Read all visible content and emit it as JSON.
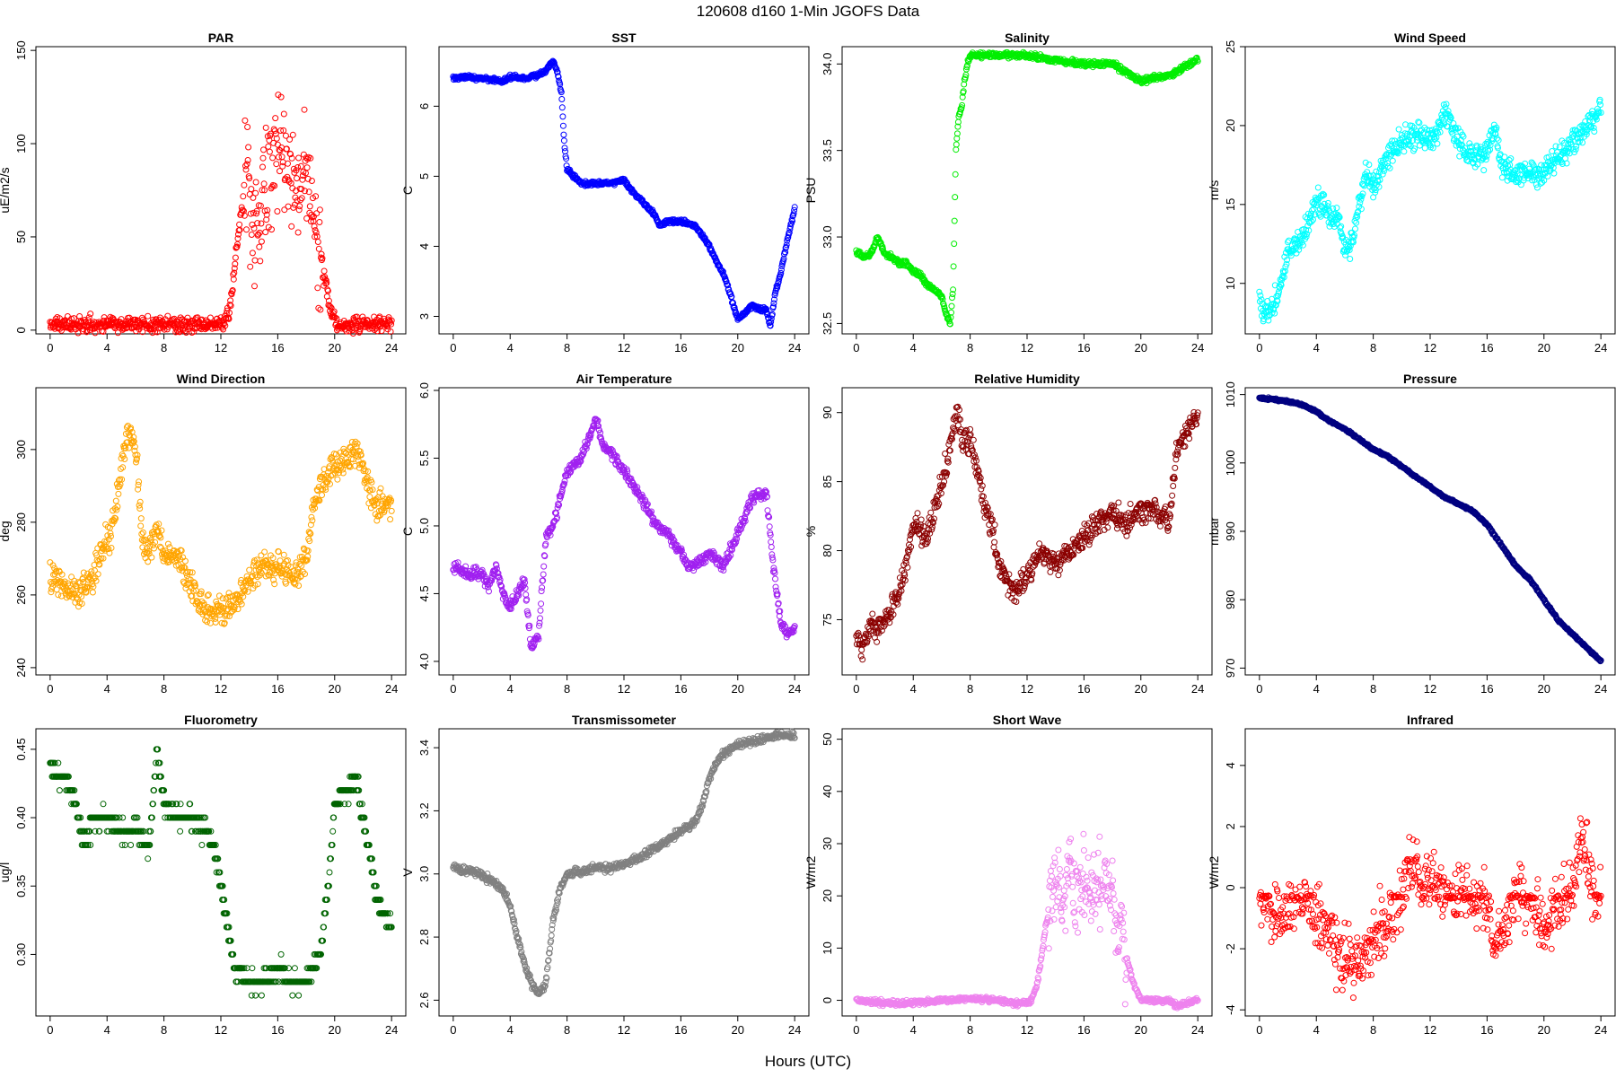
{
  "figure": {
    "title": "120608   d160   1-Min  JGOFS Data",
    "xlabel": "Hours (UTC)"
  },
  "chart_data": [
    {
      "type": "scatter",
      "title": "PAR",
      "ylabel": "uE/m2/s",
      "color": "#ff0000",
      "xlim": [
        -1,
        25
      ],
      "ylim": [
        -2,
        152
      ],
      "xticks": [
        0,
        4,
        8,
        12,
        16,
        20,
        24
      ],
      "yticks": [
        0,
        50,
        100,
        150
      ],
      "ytick_labels": [
        "0",
        "50",
        "100",
        "150"
      ],
      "noise": 4,
      "x": [
        0,
        2,
        4,
        6,
        8,
        10,
        11,
        12,
        12.3,
        12.7,
        13,
        13.3,
        13.6,
        13.9,
        14.2,
        14.5,
        14.8,
        15.2,
        15.6,
        16,
        16.4,
        16.8,
        17.2,
        17.6,
        18,
        18.3,
        18.6,
        18.9,
        19.2,
        19.5,
        19.8,
        20.2,
        21,
        22,
        24
      ],
      "y": [
        3,
        3,
        3,
        3,
        3,
        3,
        3,
        3,
        5,
        15,
        35,
        55,
        75,
        90,
        60,
        50,
        70,
        80,
        85,
        95,
        90,
        80,
        85,
        75,
        85,
        65,
        50,
        50,
        30,
        20,
        8,
        3,
        3,
        3,
        3
      ],
      "spread": [
        [
          13.5,
          19
        ],
        30
      ]
    },
    {
      "type": "scatter",
      "title": "SST",
      "ylabel": "C",
      "color": "#0000ff",
      "xlim": [
        -1,
        25
      ],
      "ylim": [
        2.75,
        6.85
      ],
      "xticks": [
        0,
        4,
        8,
        12,
        16,
        20,
        24
      ],
      "yticks": [
        3,
        4,
        5,
        6
      ],
      "ytick_labels": [
        "3",
        "4",
        "5",
        "6"
      ],
      "noise": 0.03,
      "x": [
        0,
        1,
        2,
        3,
        3.5,
        4,
        5,
        6,
        6.5,
        7,
        7.3,
        7.6,
        7.8,
        8,
        9,
        10,
        11,
        12,
        12.5,
        13,
        14,
        14.5,
        15,
        16,
        17,
        18,
        18.5,
        19,
        19.5,
        20,
        20.5,
        21,
        21.5,
        22,
        22.3,
        22.6,
        23,
        23.5,
        24
      ],
      "y": [
        6.4,
        6.42,
        6.4,
        6.38,
        6.35,
        6.42,
        6.4,
        6.45,
        6.5,
        6.65,
        6.5,
        6.2,
        5.5,
        5.1,
        4.9,
        4.9,
        4.9,
        4.95,
        4.8,
        4.7,
        4.5,
        4.3,
        4.35,
        4.35,
        4.3,
        4.0,
        3.8,
        3.6,
        3.3,
        2.95,
        3.05,
        3.15,
        3.1,
        3.1,
        2.85,
        3.3,
        3.6,
        4.1,
        4.55
      ]
    },
    {
      "type": "scatter",
      "title": "Salinity",
      "ylabel": "PSU",
      "color": "#00ee00",
      "xlim": [
        -1,
        25
      ],
      "ylim": [
        32.44,
        34.1
      ],
      "xticks": [
        0,
        4,
        8,
        12,
        16,
        20,
        24
      ],
      "yticks": [
        32.5,
        33.0,
        33.5,
        34.0
      ],
      "ytick_labels": [
        "32.5",
        "33.0",
        "33.5",
        "34.0"
      ],
      "noise": 0.015,
      "x": [
        0,
        0.5,
        1,
        1.5,
        2,
        2.5,
        3,
        3.5,
        4,
        4.5,
        5,
        5.5,
        6,
        6.3,
        6.6,
        6.8,
        7,
        7.2,
        7.4,
        7.6,
        7.8,
        8,
        10,
        12,
        14,
        16,
        18,
        19,
        20,
        21,
        22,
        23,
        24
      ],
      "y": [
        32.92,
        32.88,
        32.9,
        33.0,
        32.9,
        32.88,
        32.85,
        32.85,
        32.8,
        32.78,
        32.72,
        32.7,
        32.65,
        32.55,
        32.5,
        32.7,
        33.5,
        33.7,
        33.75,
        33.9,
        34.0,
        34.05,
        34.05,
        34.05,
        34.02,
        34.0,
        34.0,
        33.95,
        33.9,
        33.92,
        33.93,
        33.98,
        34.03
      ]
    },
    {
      "type": "scatter",
      "title": "Wind Speed",
      "ylabel": "m/s",
      "color": "#00ffff",
      "xlim": [
        -1,
        25
      ],
      "ylim": [
        6.8,
        25
      ],
      "xticks": [
        0,
        4,
        8,
        12,
        16,
        20,
        24
      ],
      "yticks": [
        10,
        15,
        20,
        25
      ],
      "ytick_labels": [
        "10",
        "15",
        "20",
        "25"
      ],
      "noise": 0.8,
      "x": [
        0,
        0.5,
        1,
        1.5,
        2,
        2.5,
        3,
        3.5,
        4,
        4.5,
        5,
        5.5,
        6,
        6.5,
        7,
        7.5,
        8,
        8.5,
        9,
        10,
        11,
        12,
        12.5,
        13,
        14,
        15,
        16,
        16.5,
        17,
        18,
        19,
        20,
        21,
        22,
        23,
        24
      ],
      "y": [
        9,
        8,
        8.5,
        10,
        12,
        12.5,
        13,
        14,
        15,
        15,
        14,
        14.5,
        12,
        12.5,
        15,
        17,
        16,
        17,
        18,
        19,
        19.5,
        19,
        19.5,
        21,
        19,
        18,
        18,
        20,
        17.5,
        17,
        17,
        17,
        18,
        19,
        20,
        21
      ]
    },
    {
      "type": "scatter",
      "title": "Wind Direction",
      "ylabel": "deg",
      "color": "#ffa500",
      "xlim": [
        -1,
        25
      ],
      "ylim": [
        238,
        317
      ],
      "xticks": [
        0,
        4,
        8,
        12,
        16,
        20,
        24
      ],
      "yticks": [
        240,
        260,
        280,
        300
      ],
      "ytick_labels": [
        "240",
        "260",
        "280",
        "300"
      ],
      "noise": 4,
      "x": [
        0,
        1,
        2,
        3,
        4,
        4.5,
        5,
        5.5,
        6,
        6.5,
        7,
        7.5,
        8,
        9,
        10,
        11,
        12,
        13,
        14,
        15,
        16,
        17,
        18,
        18.5,
        19,
        20,
        21,
        21.5,
        22,
        22.5,
        23,
        24
      ],
      "y": [
        265,
        262,
        260,
        265,
        275,
        280,
        295,
        305,
        300,
        275,
        272,
        278,
        272,
        270,
        262,
        255,
        255,
        258,
        265,
        268,
        268,
        265,
        270,
        285,
        290,
        295,
        298,
        300,
        295,
        288,
        285,
        285
      ]
    },
    {
      "type": "scatter",
      "title": "Air Temperature",
      "ylabel": "C",
      "color": "#a020f0",
      "xlim": [
        -1,
        25
      ],
      "ylim": [
        3.9,
        6.02
      ],
      "xticks": [
        0,
        4,
        8,
        12,
        16,
        20,
        24
      ],
      "yticks": [
        4.0,
        4.5,
        5.0,
        5.5,
        6.0
      ],
      "ytick_labels": [
        "4.0",
        "4.5",
        "5.0",
        "5.5",
        "6.0"
      ],
      "noise": 0.04,
      "x": [
        0,
        1,
        2,
        2.5,
        3,
        3.5,
        4,
        4.5,
        5,
        5.5,
        6,
        6.5,
        7,
        7.5,
        8,
        9,
        10,
        10.5,
        11,
        12,
        13,
        14,
        15,
        16,
        16.5,
        17,
        18,
        19,
        20,
        21,
        22,
        22.5,
        23,
        23.5,
        24
      ],
      "y": [
        4.7,
        4.65,
        4.65,
        4.55,
        4.7,
        4.5,
        4.4,
        4.5,
        4.6,
        4.1,
        4.2,
        4.9,
        5.0,
        5.2,
        5.4,
        5.5,
        5.8,
        5.6,
        5.55,
        5.4,
        5.25,
        5.05,
        4.95,
        4.8,
        4.7,
        4.7,
        4.8,
        4.7,
        4.95,
        5.2,
        5.25,
        4.7,
        4.3,
        4.2,
        4.25
      ]
    },
    {
      "type": "scatter",
      "title": "Relative Humidity",
      "ylabel": "%",
      "color": "#8b0000",
      "xlim": [
        -1,
        25
      ],
      "ylim": [
        71,
        91.8
      ],
      "xticks": [
        0,
        4,
        8,
        12,
        16,
        20,
        24
      ],
      "yticks": [
        75,
        80,
        85,
        90
      ],
      "ytick_labels": [
        "75",
        "80",
        "85",
        "90"
      ],
      "noise": 0.9,
      "x": [
        0,
        0.5,
        1,
        1.5,
        2,
        2.5,
        3,
        3.5,
        4,
        5,
        5.5,
        6,
        6.5,
        7,
        7.5,
        8,
        8.5,
        9,
        9.5,
        10,
        11,
        12,
        13,
        14,
        15,
        16,
        17,
        18,
        19,
        20,
        21,
        22,
        22.5,
        23,
        24
      ],
      "y": [
        74,
        73,
        75,
        74,
        75,
        76,
        77,
        79,
        82,
        81,
        83,
        85,
        87,
        90,
        88,
        88,
        86,
        83,
        82,
        79,
        77,
        78,
        80,
        79,
        80,
        81,
        82,
        83,
        82,
        83,
        83,
        82,
        87,
        88,
        90
      ]
    },
    {
      "type": "scatter",
      "title": "Pressure",
      "ylabel": "mbar",
      "color": "#000080",
      "xlim": [
        -1,
        25
      ],
      "ylim": [
        969,
        1011
      ],
      "xticks": [
        0,
        4,
        8,
        12,
        16,
        20,
        24
      ],
      "yticks": [
        970,
        980,
        990,
        1000,
        1010
      ],
      "ytick_labels": [
        "970",
        "980",
        "990",
        "1000",
        "1010"
      ],
      "noise": 0.15,
      "x": [
        0,
        1,
        2,
        3,
        4,
        5,
        6,
        7,
        8,
        9,
        10,
        11,
        12,
        13,
        14,
        15,
        16,
        17,
        18,
        19,
        20,
        21,
        22,
        23,
        24
      ],
      "y": [
        1009.5,
        1009.3,
        1009,
        1008.5,
        1007.5,
        1006,
        1005,
        1003.5,
        1002,
        1001,
        999.5,
        998,
        996.5,
        995,
        994,
        993,
        991,
        988,
        985,
        983,
        980,
        977,
        975,
        973,
        971
      ]
    },
    {
      "type": "scatter",
      "title": "Fluorometry",
      "ylabel": "ug/l",
      "color": "#006400",
      "xlim": [
        -1,
        25
      ],
      "ylim": [
        0.255,
        0.465
      ],
      "xticks": [
        0,
        4,
        8,
        12,
        16,
        20,
        24
      ],
      "yticks": [
        0.3,
        0.35,
        0.4,
        0.45
      ],
      "ytick_labels": [
        "0.30",
        "0.35",
        "0.40",
        "0.45"
      ],
      "noise": 0.007,
      "quant": 0.01,
      "x": [
        0,
        0.5,
        1,
        1.5,
        2,
        2.5,
        3,
        4,
        5,
        6,
        7,
        7.5,
        8,
        9,
        10,
        11,
        11.5,
        12,
        12.5,
        13,
        14,
        15,
        16,
        17,
        18,
        18.5,
        19,
        19.5,
        20,
        21,
        21.5,
        22,
        23,
        24
      ],
      "y": [
        0.44,
        0.43,
        0.43,
        0.42,
        0.4,
        0.38,
        0.4,
        0.4,
        0.39,
        0.39,
        0.38,
        0.45,
        0.41,
        0.4,
        0.4,
        0.39,
        0.38,
        0.35,
        0.32,
        0.29,
        0.28,
        0.28,
        0.29,
        0.28,
        0.28,
        0.29,
        0.3,
        0.35,
        0.41,
        0.42,
        0.43,
        0.4,
        0.34,
        0.32
      ]
    },
    {
      "type": "scatter",
      "title": "Transmissometer",
      "ylabel": "V",
      "color": "#808080",
      "xlim": [
        -1,
        25
      ],
      "ylim": [
        2.55,
        3.46
      ],
      "xticks": [
        0,
        4,
        8,
        12,
        16,
        20,
        24
      ],
      "yticks": [
        2.6,
        2.8,
        3.0,
        3.2,
        3.4
      ],
      "ytick_labels": [
        "2.6",
        "2.8",
        "3.0",
        "3.2",
        "3.4"
      ],
      "noise": 0.012,
      "x": [
        0,
        1,
        2,
        3,
        3.5,
        4,
        4.5,
        5,
        5.5,
        6,
        6.5,
        7,
        7.5,
        8,
        9,
        10,
        11,
        12,
        13,
        14,
        15,
        16,
        17,
        17.5,
        18,
        18.5,
        19,
        20,
        21,
        22,
        23,
        24
      ],
      "y": [
        3.02,
        3.01,
        3.0,
        2.97,
        2.95,
        2.9,
        2.8,
        2.72,
        2.65,
        2.62,
        2.65,
        2.85,
        2.95,
        3.0,
        3.01,
        3.02,
        3.02,
        3.03,
        3.05,
        3.08,
        3.1,
        3.14,
        3.16,
        3.22,
        3.3,
        3.35,
        3.38,
        3.41,
        3.42,
        3.43,
        3.44,
        3.44
      ]
    },
    {
      "type": "scatter",
      "title": "Short Wave",
      "ylabel": "W/m2",
      "color": "#ee82ee",
      "xlim": [
        -1,
        25
      ],
      "ylim": [
        -3,
        52
      ],
      "xticks": [
        0,
        4,
        8,
        12,
        16,
        20,
        24
      ],
      "yticks": [
        0,
        10,
        20,
        30,
        40,
        50
      ],
      "ytick_labels": [
        "0",
        "10",
        "20",
        "30",
        "40",
        "50"
      ],
      "noise": 0.5,
      "x": [
        0,
        2,
        4,
        6,
        8,
        10,
        11,
        12,
        12.3,
        12.7,
        13,
        13.3,
        13.6,
        14,
        14.5,
        15,
        15.5,
        16,
        16.5,
        17,
        17.5,
        18,
        18.5,
        19,
        19.5,
        20,
        22,
        22.5,
        24
      ],
      "y": [
        0,
        -0.5,
        -0.5,
        0,
        0.3,
        0,
        -0.5,
        -0.5,
        0,
        3,
        8,
        14,
        18,
        22,
        20,
        28,
        22,
        25,
        20,
        22,
        24,
        20,
        14,
        8,
        3,
        0,
        0,
        -1,
        0
      ],
      "spread": [
        [
          13.5,
          19
        ],
        8
      ]
    },
    {
      "type": "scatter",
      "title": "Infrared",
      "ylabel": "W/m2",
      "color": "#ff0000",
      "xlim": [
        -1,
        25
      ],
      "ylim": [
        -4.2,
        5.2
      ],
      "xticks": [
        0,
        4,
        8,
        12,
        16,
        20,
        24
      ],
      "yticks": [
        -4,
        -2,
        0,
        2,
        4
      ],
      "ytick_labels": [
        "-4",
        "-2",
        "0",
        "2",
        "4"
      ],
      "noise": 1.0,
      "x": [
        0,
        1,
        2,
        3,
        4,
        5,
        6,
        7,
        8,
        9,
        10,
        10.5,
        11,
        11.5,
        12,
        13,
        14,
        15,
        16,
        16.5,
        17,
        18,
        19,
        20,
        21,
        22,
        22.5,
        23,
        24
      ],
      "y": [
        -0.5,
        -1,
        -0.8,
        -0.3,
        -1,
        -1.5,
        -2.5,
        -2.5,
        -1.5,
        -1,
        -0.5,
        0.5,
        1,
        0,
        0.5,
        -0.3,
        -0.3,
        -0.3,
        -0.3,
        -2,
        -1.5,
        -0.3,
        -0.5,
        -1.5,
        -0.5,
        0,
        1.5,
        1,
        -0.5
      ],
      "band": [
        -0.3,
        0.12
      ]
    }
  ]
}
